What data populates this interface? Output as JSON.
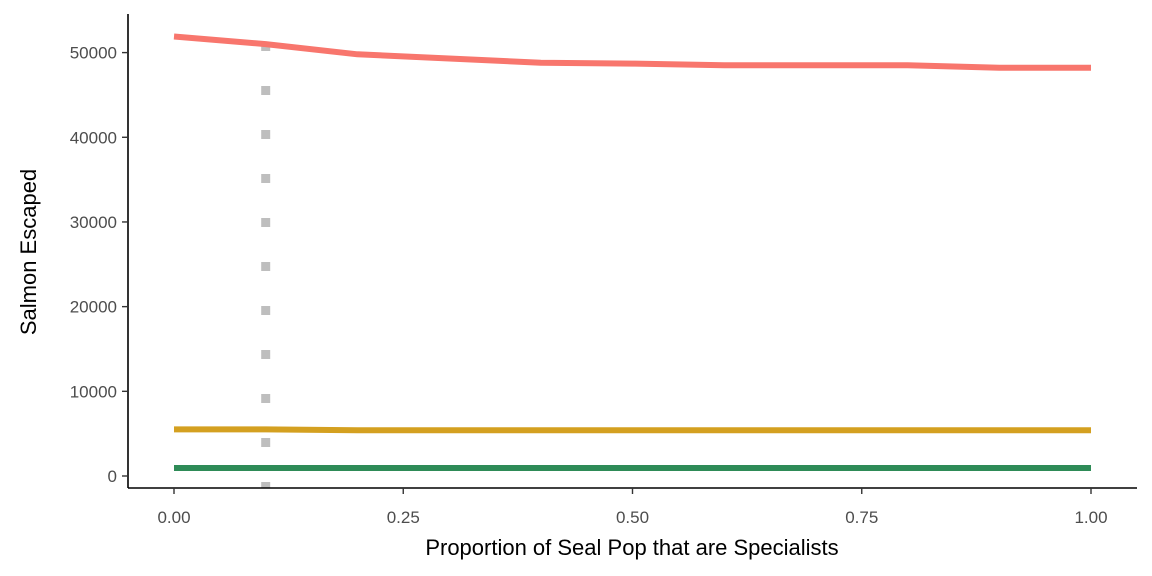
{
  "chart_data": {
    "type": "line",
    "title": "",
    "xlabel": "Proportion of Seal Pop that are Specialists",
    "ylabel": "Salmon Escaped",
    "xlim": [
      0.0,
      1.0
    ],
    "ylim": [
      0,
      53000
    ],
    "x_ticks": [
      0.0,
      0.25,
      0.5,
      0.75,
      1.0
    ],
    "x_tick_labels": [
      "0.00",
      "0.25",
      "0.50",
      "0.75",
      "1.00"
    ],
    "y_ticks": [
      0,
      10000,
      20000,
      30000,
      40000,
      50000
    ],
    "y_tick_labels": [
      "0",
      "10000",
      "20000",
      "30000",
      "40000",
      "50000"
    ],
    "grid": false,
    "legend": "none",
    "x": [
      0.0,
      0.1,
      0.2,
      0.3,
      0.4,
      0.5,
      0.6,
      0.7,
      0.8,
      0.9,
      1.0
    ],
    "series": [
      {
        "color": "#F8766D",
        "values": [
          51900,
          51000,
          49800,
          49300,
          48800,
          48700,
          48500,
          48500,
          48500,
          48200,
          48200
        ]
      },
      {
        "color": "#D4A020",
        "values": [
          5500,
          5500,
          5400,
          5400,
          5400,
          5400,
          5400,
          5400,
          5400,
          5400,
          5400
        ]
      },
      {
        "color": "#2E8B57",
        "values": [
          950,
          950,
          950,
          950,
          950,
          950,
          950,
          950,
          950,
          950,
          950
        ]
      }
    ],
    "reference_lines": [
      {
        "orientation": "vertical",
        "x": 0.1,
        "style": "dotted",
        "color": "#BEBEBE"
      }
    ]
  }
}
